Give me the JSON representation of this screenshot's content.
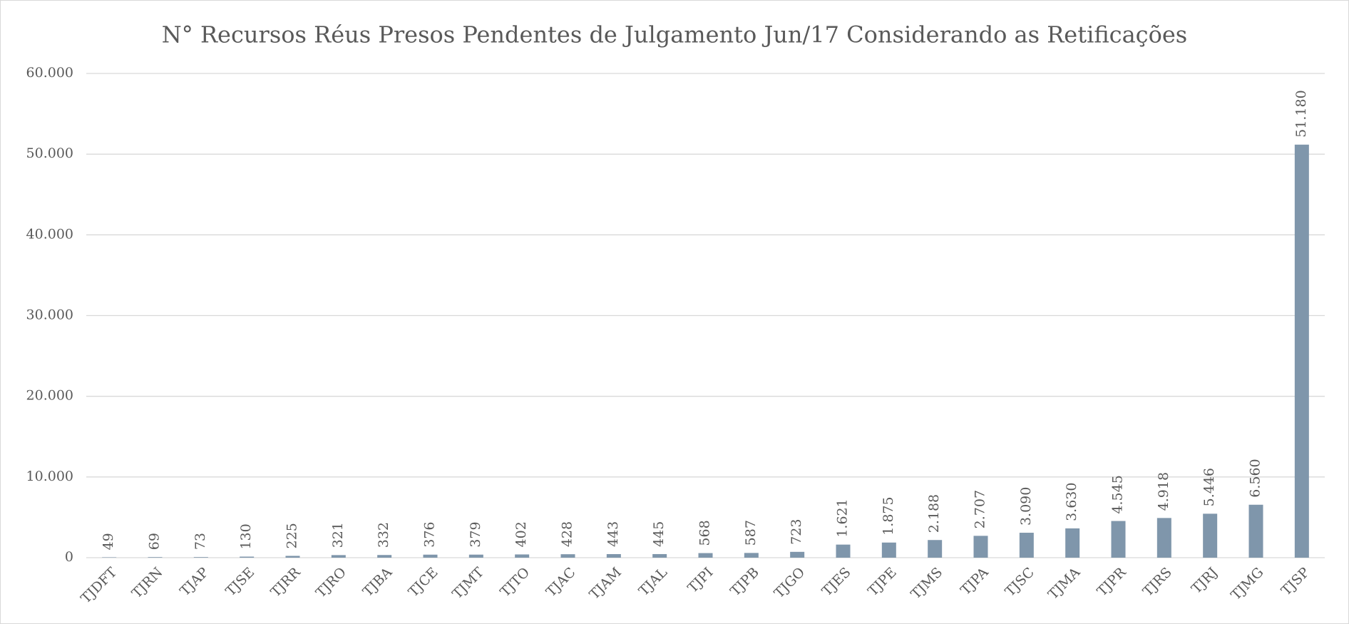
{
  "chart_data": {
    "type": "bar",
    "title": "N° Recursos Réus Presos Pendentes de Julgamento Jun/17 Considerando as Retificações",
    "categories": [
      "TJDFT",
      "TJRN",
      "TJAP",
      "TJSE",
      "TJRR",
      "TJRO",
      "TJBA",
      "TJCE",
      "TJMT",
      "TJTO",
      "TJAC",
      "TJAM",
      "TJAL",
      "TJPI",
      "TJPB",
      "TJGO",
      "TJES",
      "TJPE",
      "TJMS",
      "TJPA",
      "TJSC",
      "TJMA",
      "TJPR",
      "TJRS",
      "TJRJ",
      "TJMG",
      "TJSP"
    ],
    "values": [
      49,
      69,
      73,
      130,
      225,
      321,
      332,
      376,
      379,
      402,
      428,
      443,
      445,
      568,
      587,
      723,
      1621,
      1875,
      2188,
      2707,
      3090,
      3630,
      4545,
      4918,
      5446,
      6560,
      51180
    ],
    "value_labels": [
      "49",
      "69",
      "73",
      "130",
      "225",
      "321",
      "332",
      "376",
      "379",
      "402",
      "428",
      "443",
      "445",
      "568",
      "587",
      "723",
      "1.621",
      "1.875",
      "2.188",
      "2.707",
      "3.090",
      "3.630",
      "4.545",
      "4.918",
      "5.446",
      "6.560",
      "51.180"
    ],
    "color": "#7f96ab",
    "ylim": [
      0,
      60000
    ],
    "yticks": [
      0,
      {
        "value": 10000,
        "label": "10.000"
      },
      {
        "value": 20000,
        "label": "20.000"
      },
      {
        "value": 30000,
        "label": "30.000"
      },
      {
        "value": 40000,
        "label": "40.000"
      },
      {
        "value": 50000,
        "label": "50.000"
      },
      {
        "value": 60000,
        "label": "60.000"
      }
    ],
    "grid": true
  }
}
